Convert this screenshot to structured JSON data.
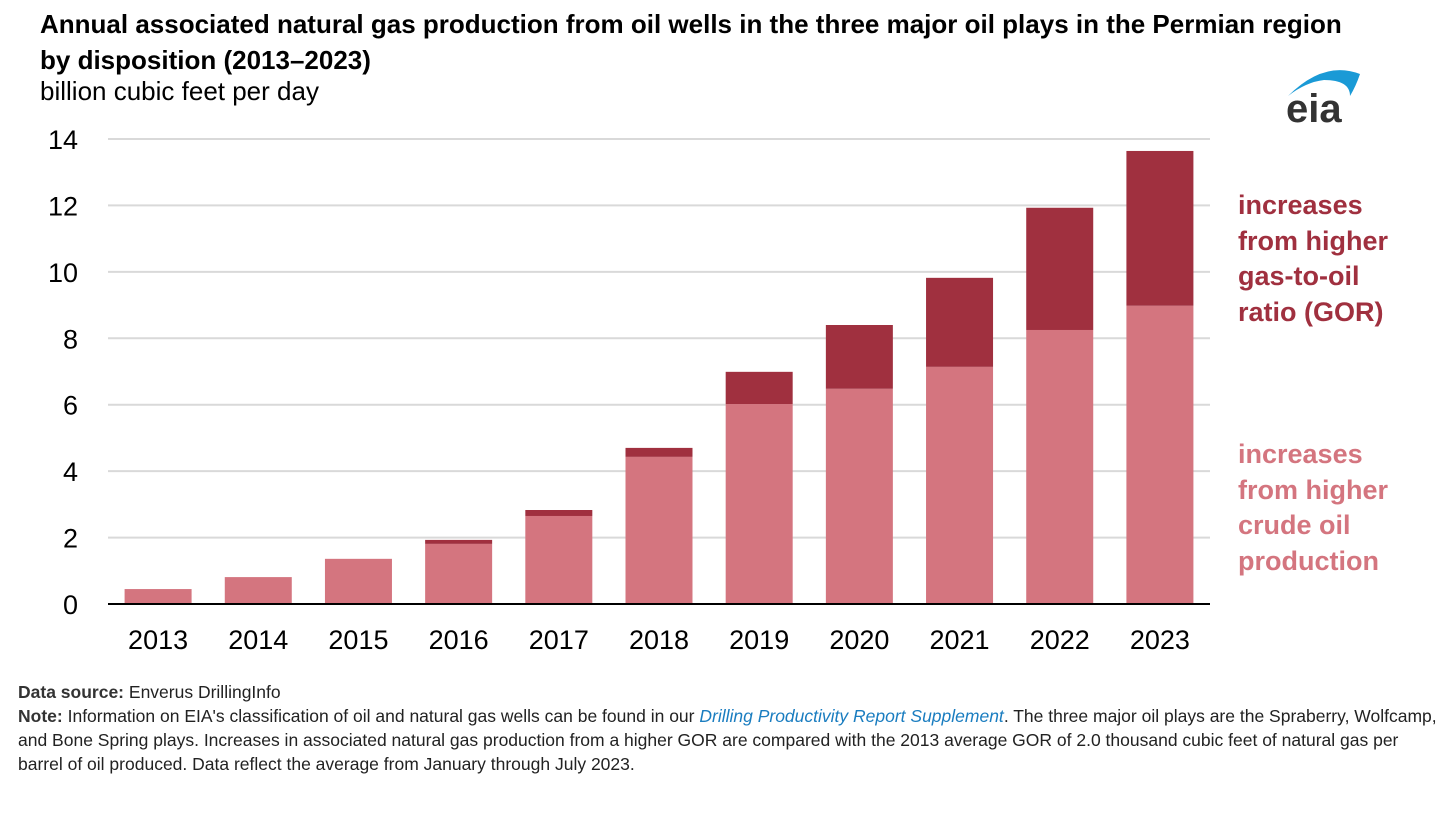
{
  "chart_data": {
    "type": "bar",
    "stacked": true,
    "title": "Annual associated natural gas production from oil wells in the three major oil plays in the Permian region by disposition (2013–2023)",
    "ylabel": "billion cubic feet per day",
    "xlabel": "",
    "ylim": [
      0,
      14
    ],
    "yticks": [
      0,
      2,
      4,
      6,
      8,
      10,
      12,
      14
    ],
    "grid": true,
    "categories": [
      "2013",
      "2014",
      "2015",
      "2016",
      "2017",
      "2018",
      "2019",
      "2020",
      "2021",
      "2022",
      "2023"
    ],
    "series": [
      {
        "name": "increases from higher crude oil production",
        "color": "#d4757f",
        "values": [
          0.45,
          0.81,
          1.36,
          1.81,
          2.65,
          4.43,
          6.02,
          6.48,
          7.14,
          8.25,
          8.98
        ]
      },
      {
        "name": "increases from higher gas-to-oil ratio (GOR)",
        "color": "#a0303f",
        "values": [
          0,
          0,
          0,
          0.12,
          0.18,
          0.27,
          0.97,
          1.92,
          2.68,
          3.68,
          4.66
        ]
      }
    ],
    "annotations": [
      {
        "lines": [
          "increases",
          "from higher",
          "gas-to-oil",
          "ratio (GOR)"
        ],
        "color": "#a0303f"
      },
      {
        "lines": [
          "increases",
          "from higher",
          "crude oil",
          "production"
        ],
        "color": "#d4757f"
      }
    ]
  },
  "logo": "eia",
  "footer": {
    "source_label": "Data source:",
    "source": "Enverus DrillingInfo",
    "note_label": "Note:",
    "note_pre": "Information on EIA's classification of oil and natural gas wells can be found in our ",
    "note_link": "Drilling Productivity Report Supplement",
    "note_post": ". The three major oil plays are the Spraberry, Wolfcamp, and Bone Spring plays. Increases in associated natural gas production from a higher GOR are compared with the 2013 average GOR of 2.0 thousand cubic feet of natural gas per barrel of oil produced. Data reflect the average from January through July 2023."
  }
}
